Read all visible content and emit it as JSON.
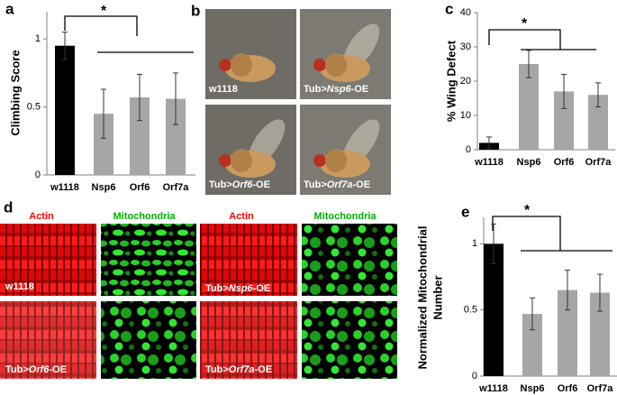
{
  "panel_labels": [
    "a",
    "b",
    "c",
    "d",
    "e"
  ],
  "chart_data": [
    {
      "type": "bar",
      "ylabel": [
        "Climbing Score"
      ],
      "categories": [
        "w1118",
        "Nsp6",
        "Orf6",
        "Orf7a"
      ],
      "values": [
        0.95,
        0.45,
        0.57,
        0.56
      ],
      "errors": [
        0.1,
        0.18,
        0.17,
        0.19
      ],
      "colors": [
        "#000000",
        "#a6a6a6",
        "#a6a6a6",
        "#a6a6a6"
      ],
      "ylim": [
        0,
        1.2
      ],
      "yticks": [
        0,
        0.5,
        1
      ],
      "annotation": "*"
    },
    {
      "type": "bar",
      "ylabel": [
        "% Wing Defect"
      ],
      "categories": [
        "w1118",
        "Nsp6",
        "Orf6",
        "Orf7a"
      ],
      "values": [
        2,
        25,
        17,
        16
      ],
      "errors": [
        1.7,
        4,
        5,
        3.5
      ],
      "colors": [
        "#000000",
        "#a6a6a6",
        "#a6a6a6",
        "#a6a6a6"
      ],
      "ylim": [
        0,
        40
      ],
      "yticks": [
        0,
        10,
        20,
        30,
        40
      ],
      "annotation": "*"
    },
    {
      "type": "bar",
      "ylabel": [
        "Normalized Mitochondrial",
        "Number"
      ],
      "categories": [
        "w1118",
        "Nsp6",
        "Orf6",
        "Orf7a"
      ],
      "values": [
        1.0,
        0.47,
        0.65,
        0.63
      ],
      "errors": [
        0.15,
        0.12,
        0.15,
        0.14
      ],
      "colors": [
        "#000000",
        "#a6a6a6",
        "#a6a6a6",
        "#a6a6a6"
      ],
      "ylim": [
        0,
        1.2
      ],
      "yticks": [
        0,
        0.5,
        1
      ],
      "annotation": "*"
    }
  ],
  "fly_images": [
    {
      "label": [
        "w1118"
      ]
    },
    {
      "label": [
        "Tub>",
        "Nsp6",
        "-OE"
      ]
    },
    {
      "label": [
        "Tub>",
        "Orf6",
        "-OE"
      ]
    },
    {
      "label": [
        "Tub>",
        "Orf7a",
        "-OE"
      ]
    }
  ],
  "muscle_headers": [
    "Actin",
    "Mitochondria",
    "Actin",
    "Mitochondria"
  ],
  "muscle_images": [
    {
      "label": [
        "w1118"
      ]
    },
    {
      "label": [
        "Tub>",
        "Nsp6",
        "-OE"
      ]
    },
    {
      "label": [
        "Tub>",
        "Orf6",
        "-OE"
      ]
    },
    {
      "label": [
        "Tub>",
        "Orf7a",
        "-OE"
      ]
    }
  ]
}
